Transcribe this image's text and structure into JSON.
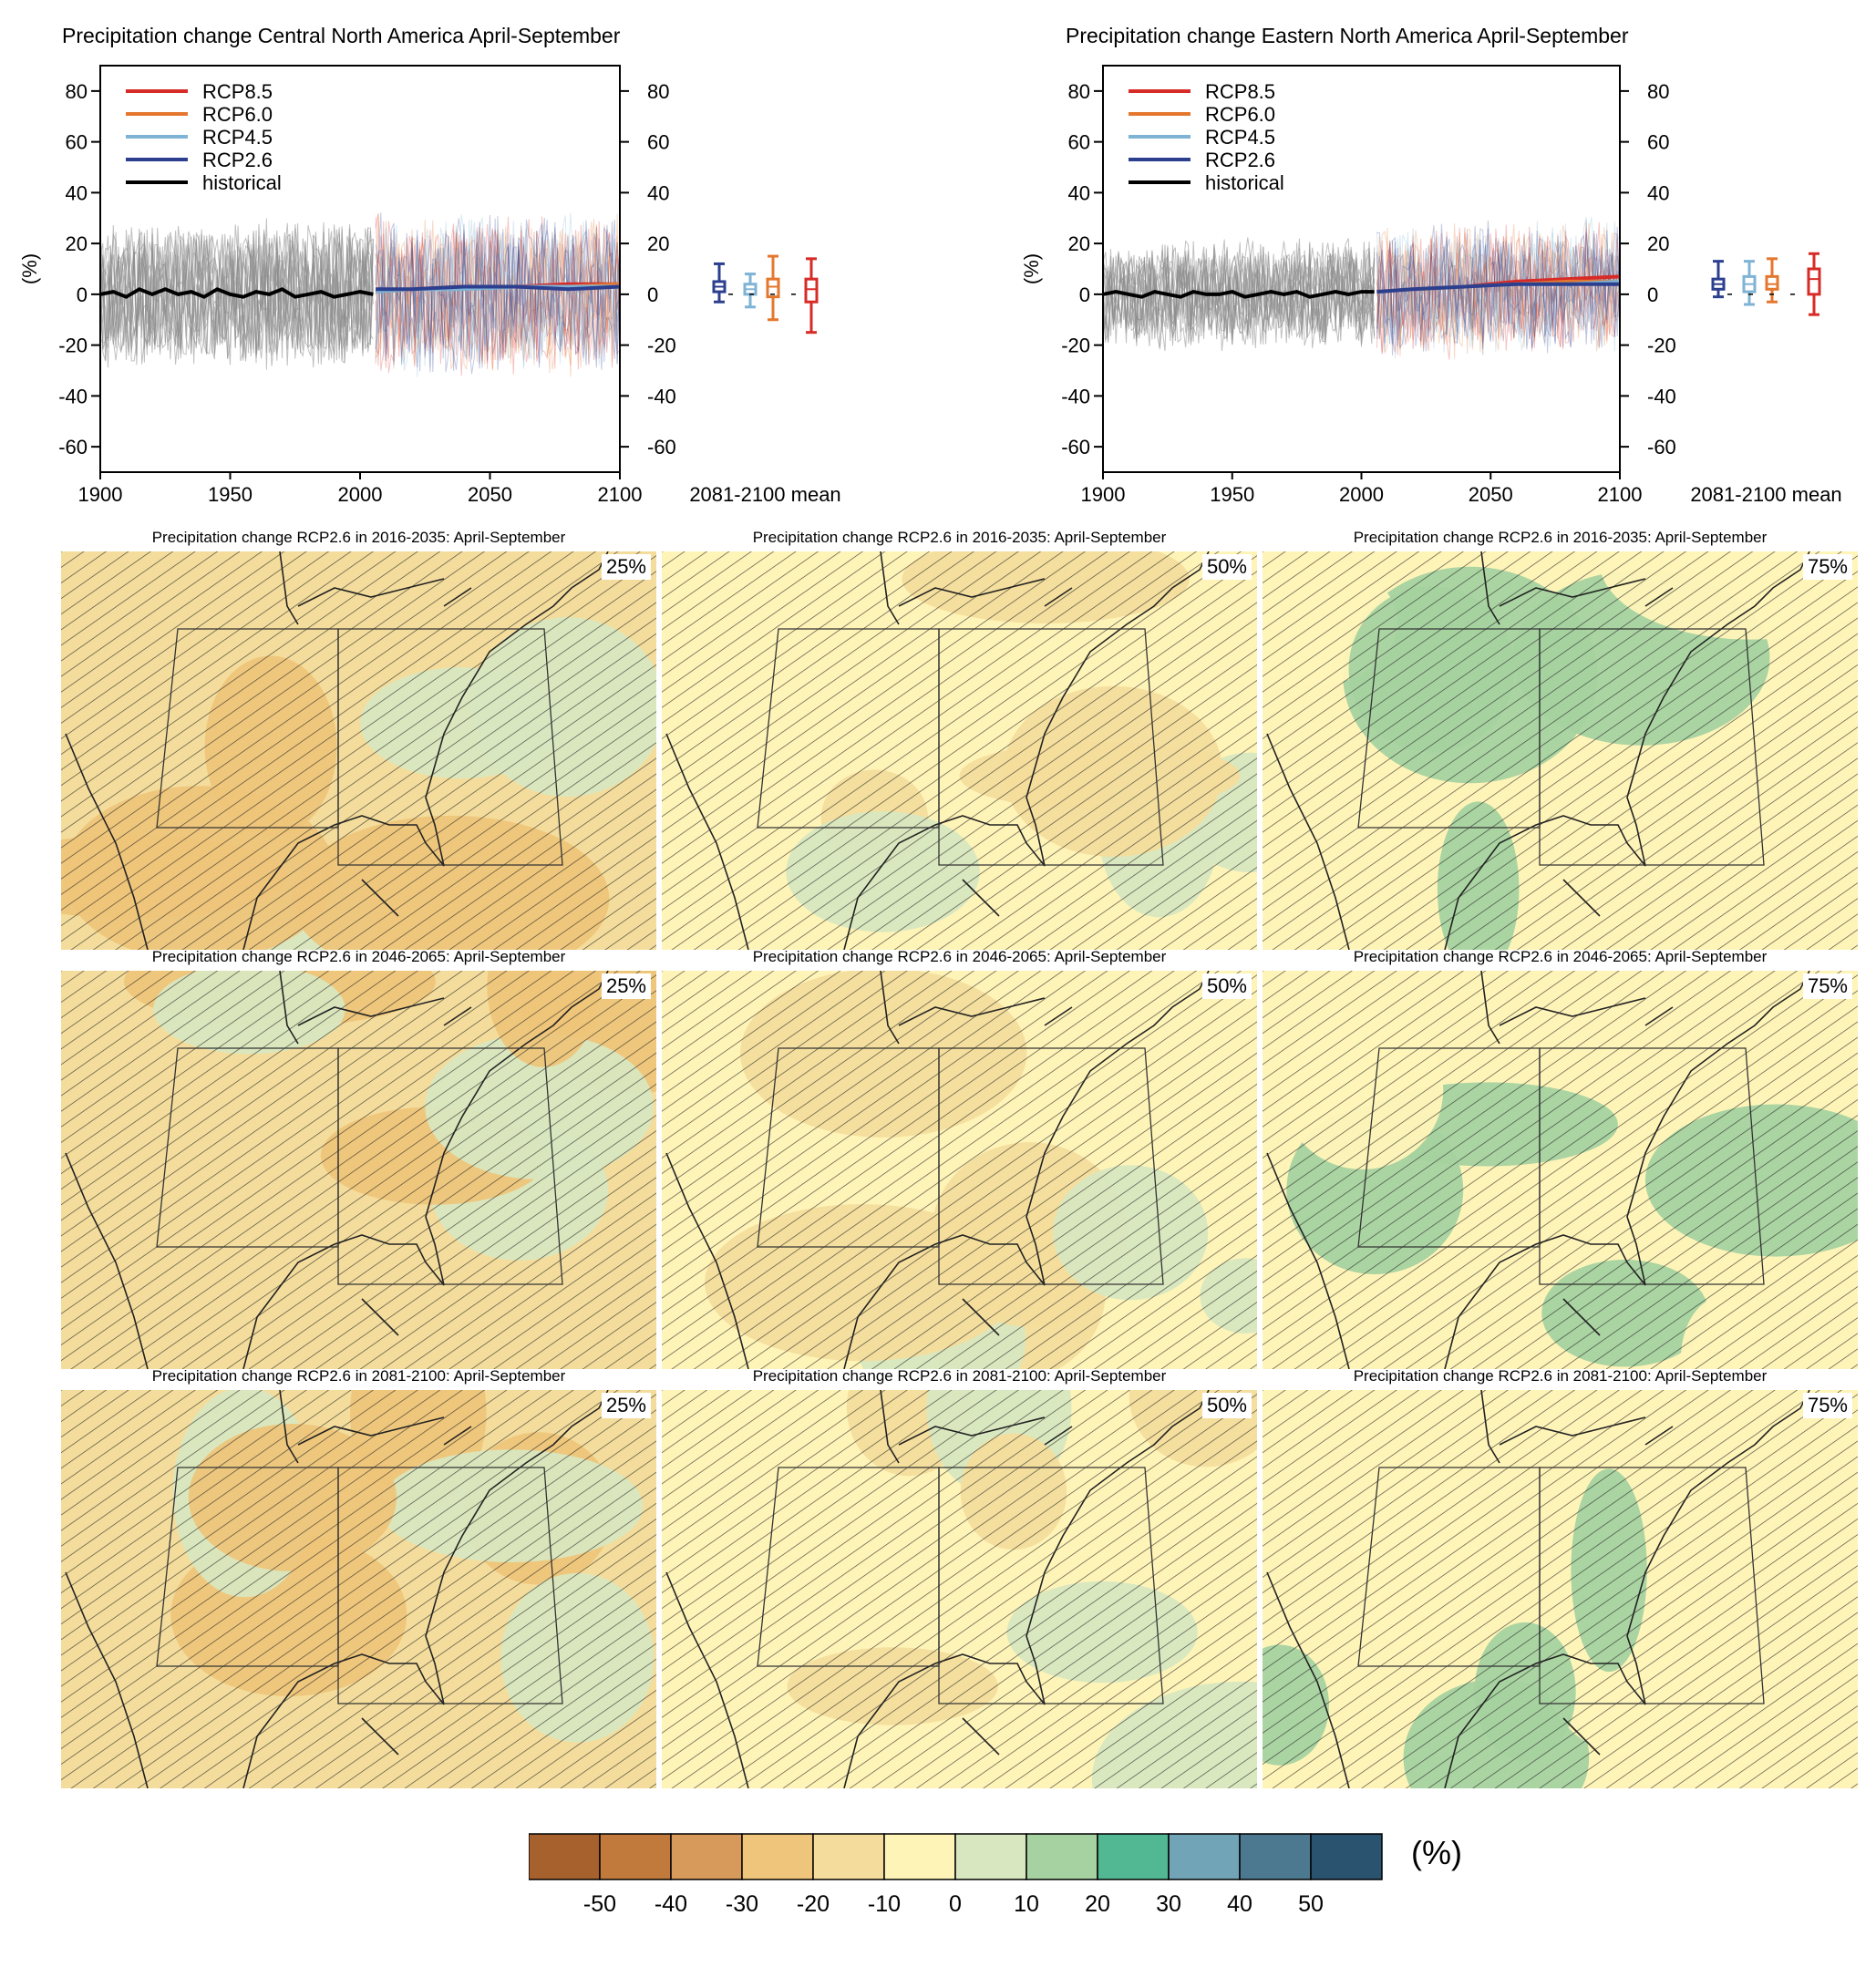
{
  "chart_data": [
    {
      "type": "line",
      "panel": "time-series-left",
      "title": "Precipitation change Central North America April-September",
      "ylabel": "(%)",
      "xlabel": "",
      "xlim": [
        1900,
        2100
      ],
      "ylim": [
        -70,
        90
      ],
      "xticks": [
        1900,
        1950,
        2000,
        2050,
        2100
      ],
      "yticks": [
        -60,
        -40,
        -20,
        0,
        20,
        40,
        60,
        80
      ],
      "legend_position": "top-left",
      "series": [
        {
          "name": "RCP8.5",
          "color": "#d62b27",
          "x": [
            2006,
            2020,
            2040,
            2060,
            2080,
            2100
          ],
          "values": [
            1,
            2,
            3,
            3,
            4,
            4
          ]
        },
        {
          "name": "RCP6.0",
          "color": "#e4772e",
          "x": [
            2006,
            2020,
            2040,
            2060,
            2080,
            2100
          ],
          "values": [
            1,
            2,
            3,
            3,
            3,
            4
          ]
        },
        {
          "name": "RCP4.5",
          "color": "#7fb3d5",
          "x": [
            2006,
            2020,
            2040,
            2060,
            2080,
            2100
          ],
          "values": [
            1,
            2,
            2,
            3,
            3,
            3
          ]
        },
        {
          "name": "RCP2.6",
          "color": "#2c3f8f",
          "x": [
            2006,
            2020,
            2040,
            2060,
            2080,
            2100
          ],
          "values": [
            2,
            2,
            3,
            3,
            2,
            3
          ]
        },
        {
          "name": "historical",
          "color": "#000000",
          "x": [
            1900,
            1905,
            1910,
            1915,
            1920,
            1925,
            1930,
            1935,
            1940,
            1945,
            1950,
            1955,
            1960,
            1965,
            1970,
            1975,
            1980,
            1985,
            1990,
            1995,
            2000,
            2005
          ],
          "values": [
            0,
            1,
            -1,
            2,
            0,
            2,
            0,
            1,
            -1,
            2,
            0,
            -1,
            1,
            0,
            2,
            -1,
            0,
            1,
            -1,
            0,
            1,
            0
          ]
        }
      ],
      "period_mean": {
        "label": "2081-2100 mean",
        "boxes": [
          {
            "name": "RCP2.6",
            "color": "#2c3f8f",
            "min": -3,
            "q1": 1,
            "median": 3,
            "q3": 5,
            "max": 12
          },
          {
            "name": "RCP4.5",
            "color": "#7fb3d5",
            "min": -5,
            "q1": 0,
            "median": 2,
            "q3": 4,
            "max": 8
          },
          {
            "name": "RCP6.0",
            "color": "#e4772e",
            "min": -10,
            "q1": -1,
            "median": 3,
            "q3": 6,
            "max": 15
          },
          {
            "name": "RCP8.5",
            "color": "#d62b27",
            "min": -15,
            "q1": -3,
            "median": 2,
            "q3": 6,
            "max": 14
          }
        ]
      }
    },
    {
      "type": "line",
      "panel": "time-series-right",
      "title": "Precipitation change Eastern North America April-September",
      "ylabel": "(%)",
      "xlabel": "",
      "xlim": [
        1900,
        2100
      ],
      "ylim": [
        -70,
        90
      ],
      "xticks": [
        1900,
        1950,
        2000,
        2050,
        2100
      ],
      "yticks": [
        -60,
        -40,
        -20,
        0,
        20,
        40,
        60,
        80
      ],
      "legend_position": "top-left",
      "series": [
        {
          "name": "RCP8.5",
          "color": "#d62b27",
          "x": [
            2006,
            2020,
            2040,
            2060,
            2080,
            2100
          ],
          "values": [
            1,
            2,
            3,
            5,
            6,
            7
          ]
        },
        {
          "name": "RCP6.0",
          "color": "#e4772e",
          "x": [
            2006,
            2020,
            2040,
            2060,
            2080,
            2100
          ],
          "values": [
            1,
            2,
            3,
            4,
            5,
            5
          ]
        },
        {
          "name": "RCP4.5",
          "color": "#7fb3d5",
          "x": [
            2006,
            2020,
            2040,
            2060,
            2080,
            2100
          ],
          "values": [
            1,
            2,
            3,
            4,
            4,
            5
          ]
        },
        {
          "name": "RCP2.6",
          "color": "#2c3f8f",
          "x": [
            2006,
            2020,
            2040,
            2060,
            2080,
            2100
          ],
          "values": [
            1,
            2,
            3,
            4,
            4,
            4
          ]
        },
        {
          "name": "historical",
          "color": "#000000",
          "x": [
            1900,
            1905,
            1910,
            1915,
            1920,
            1925,
            1930,
            1935,
            1940,
            1945,
            1950,
            1955,
            1960,
            1965,
            1970,
            1975,
            1980,
            1985,
            1990,
            1995,
            2000,
            2005
          ],
          "values": [
            0,
            1,
            0,
            -1,
            1,
            0,
            -1,
            1,
            0,
            0,
            1,
            -1,
            0,
            1,
            0,
            1,
            -1,
            0,
            1,
            0,
            1,
            1
          ]
        }
      ],
      "period_mean": {
        "label": "2081-2100 mean",
        "boxes": [
          {
            "name": "RCP2.6",
            "color": "#2c3f8f",
            "min": -1,
            "q1": 2,
            "median": 4,
            "q3": 6,
            "max": 13
          },
          {
            "name": "RCP4.5",
            "color": "#7fb3d5",
            "min": -4,
            "q1": 1,
            "median": 4,
            "q3": 7,
            "max": 13
          },
          {
            "name": "RCP6.0",
            "color": "#e4772e",
            "min": -3,
            "q1": 2,
            "median": 4,
            "q3": 7,
            "max": 14
          },
          {
            "name": "RCP8.5",
            "color": "#d62b27",
            "min": -8,
            "q1": 0,
            "median": 6,
            "q3": 10,
            "max": 16
          }
        ]
      }
    },
    {
      "type": "heatmap",
      "panel": "maps",
      "colorbar": {
        "unit": "(%)",
        "ticks": [
          -50,
          -40,
          -30,
          -20,
          -10,
          0,
          10,
          20,
          30,
          40,
          50
        ],
        "colors": [
          "#a6612c",
          "#c17a3c",
          "#d79a5a",
          "#eec57a",
          "#f4dd9c",
          "#fff4b8",
          "#d8e7c0",
          "#a5d2a0",
          "#52b893",
          "#72a4b7",
          "#4c7990",
          "#2a5370"
        ]
      },
      "maps": [
        {
          "title": "Precipitation change RCP2.6 in 2016-2035: April-September",
          "percentile": "25%",
          "dominant_class": -10
        },
        {
          "title": "Precipitation change RCP2.6 in 2016-2035: April-September",
          "percentile": "50%",
          "dominant_class": 0
        },
        {
          "title": "Precipitation change RCP2.6 in 2016-2035: April-September",
          "percentile": "75%",
          "dominant_class": 0
        },
        {
          "title": "Precipitation change RCP2.6 in 2046-2065: April-September",
          "percentile": "25%",
          "dominant_class": -10
        },
        {
          "title": "Precipitation change RCP2.6 in 2046-2065: April-September",
          "percentile": "50%",
          "dominant_class": 0
        },
        {
          "title": "Precipitation change RCP2.6 in 2046-2065: April-September",
          "percentile": "75%",
          "dominant_class": 0
        },
        {
          "title": "Precipitation change RCP2.6 in 2081-2100: April-September",
          "percentile": "25%",
          "dominant_class": -10
        },
        {
          "title": "Precipitation change RCP2.6 in 2081-2100: April-September",
          "percentile": "50%",
          "dominant_class": 0
        },
        {
          "title": "Precipitation change RCP2.6 in 2081-2100: April-September",
          "percentile": "75%",
          "dominant_class": 0
        }
      ]
    }
  ]
}
